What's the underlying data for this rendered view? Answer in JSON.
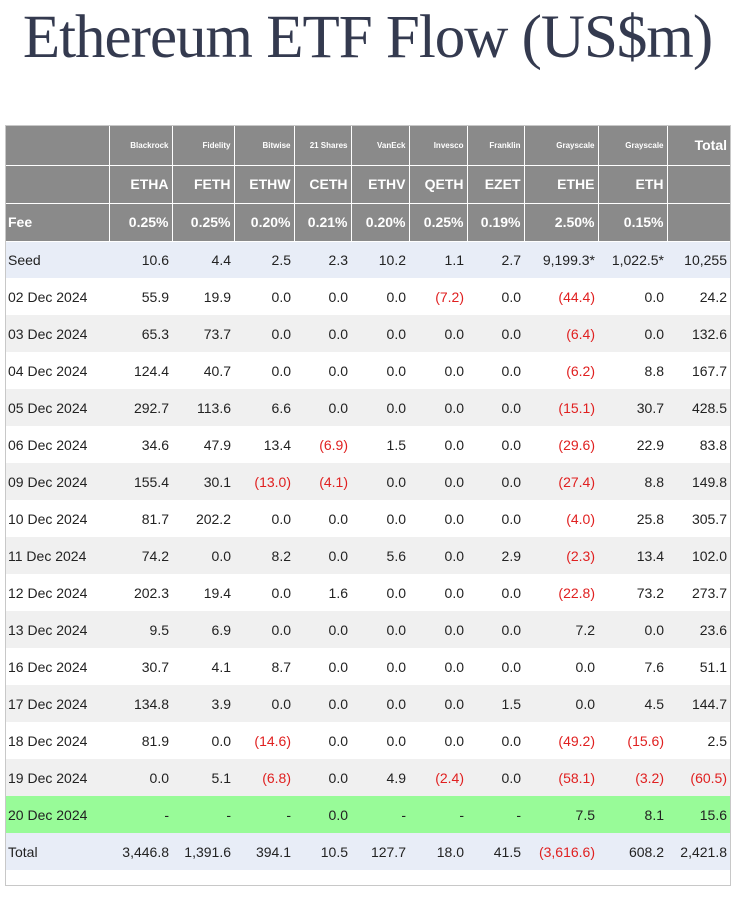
{
  "title": "Ethereum ETF Flow (US$m)",
  "issuers": [
    "",
    "Blackrock",
    "Fidelity",
    "Bitwise",
    "21 Shares",
    "VanEck",
    "Invesco",
    "Franklin",
    "Grayscale",
    "Grayscale",
    "Total"
  ],
  "tickers": [
    "",
    "ETHA",
    "FETH",
    "ETHW",
    "CETH",
    "ETHV",
    "QETH",
    "EZET",
    "ETHE",
    "ETH",
    ""
  ],
  "fees": [
    "Fee",
    "0.25%",
    "0.25%",
    "0.20%",
    "0.21%",
    "0.20%",
    "0.25%",
    "0.19%",
    "2.50%",
    "0.15%",
    ""
  ],
  "rows": [
    [
      "Seed",
      "10.6",
      "4.4",
      "2.5",
      "2.3",
      "10.2",
      "1.1",
      "2.7",
      "9,199.3*",
      "1,022.5*",
      "10,255"
    ],
    [
      "02 Dec 2024",
      "55.9",
      "19.9",
      "0.0",
      "0.0",
      "0.0",
      "(7.2)",
      "0.0",
      "(44.4)",
      "0.0",
      "24.2"
    ],
    [
      "03 Dec 2024",
      "65.3",
      "73.7",
      "0.0",
      "0.0",
      "0.0",
      "0.0",
      "0.0",
      "(6.4)",
      "0.0",
      "132.6"
    ],
    [
      "04 Dec 2024",
      "124.4",
      "40.7",
      "0.0",
      "0.0",
      "0.0",
      "0.0",
      "0.0",
      "(6.2)",
      "8.8",
      "167.7"
    ],
    [
      "05 Dec 2024",
      "292.7",
      "113.6",
      "6.6",
      "0.0",
      "0.0",
      "0.0",
      "0.0",
      "(15.1)",
      "30.7",
      "428.5"
    ],
    [
      "06 Dec 2024",
      "34.6",
      "47.9",
      "13.4",
      "(6.9)",
      "1.5",
      "0.0",
      "0.0",
      "(29.6)",
      "22.9",
      "83.8"
    ],
    [
      "09 Dec 2024",
      "155.4",
      "30.1",
      "(13.0)",
      "(4.1)",
      "0.0",
      "0.0",
      "0.0",
      "(27.4)",
      "8.8",
      "149.8"
    ],
    [
      "10 Dec 2024",
      "81.7",
      "202.2",
      "0.0",
      "0.0",
      "0.0",
      "0.0",
      "0.0",
      "(4.0)",
      "25.8",
      "305.7"
    ],
    [
      "11 Dec 2024",
      "74.2",
      "0.0",
      "8.2",
      "0.0",
      "5.6",
      "0.0",
      "2.9",
      "(2.3)",
      "13.4",
      "102.0"
    ],
    [
      "12 Dec 2024",
      "202.3",
      "19.4",
      "0.0",
      "1.6",
      "0.0",
      "0.0",
      "0.0",
      "(22.8)",
      "73.2",
      "273.7"
    ],
    [
      "13 Dec 2024",
      "9.5",
      "6.9",
      "0.0",
      "0.0",
      "0.0",
      "0.0",
      "0.0",
      "7.2",
      "0.0",
      "23.6"
    ],
    [
      "16 Dec 2024",
      "30.7",
      "4.1",
      "8.7",
      "0.0",
      "0.0",
      "0.0",
      "0.0",
      "0.0",
      "7.6",
      "51.1"
    ],
    [
      "17 Dec 2024",
      "134.8",
      "3.9",
      "0.0",
      "0.0",
      "0.0",
      "0.0",
      "1.5",
      "0.0",
      "4.5",
      "144.7"
    ],
    [
      "18 Dec 2024",
      "81.9",
      "0.0",
      "(14.6)",
      "0.0",
      "0.0",
      "0.0",
      "0.0",
      "(49.2)",
      "(15.6)",
      "2.5"
    ],
    [
      "19 Dec 2024",
      "0.0",
      "5.1",
      "(6.8)",
      "0.0",
      "4.9",
      "(2.4)",
      "0.0",
      "(58.1)",
      "(3.2)",
      "(60.5)"
    ],
    [
      "20 Dec 2024",
      "-",
      "-",
      "-",
      "0.0",
      "-",
      "-",
      "-",
      "7.5",
      "8.1",
      "15.6"
    ],
    [
      "Total",
      "3,446.8",
      "1,391.6",
      "394.1",
      "10.5",
      "127.7",
      "18.0",
      "41.5",
      "(3,616.6)",
      "608.2",
      "2,421.8"
    ]
  ],
  "colors": {
    "header_bg": "#8a8a8a",
    "seed_total_bg": "#e8edf7",
    "stripe_bg": "#f0f0f0",
    "latest_row_bg": "#98fb98",
    "negative_text": "#e02020",
    "title_text": "#343a4f"
  }
}
